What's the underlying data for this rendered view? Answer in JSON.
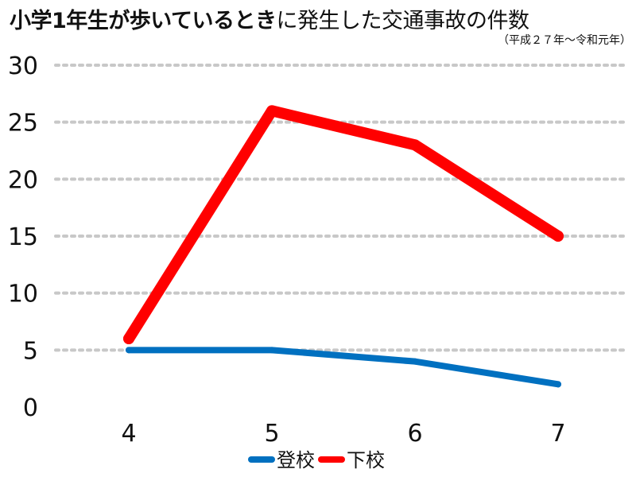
{
  "chart_data": {
    "type": "line",
    "title_bold": "小学1年生が歩いているとき",
    "title_rest": "に発生した交通事故の件数",
    "subtitle": "（平成２７年～令和元年）",
    "xlabel": "",
    "ylabel": "",
    "categories": [
      "4",
      "5",
      "6",
      "7"
    ],
    "ylim": [
      0,
      30
    ],
    "yticks": [
      0,
      5,
      10,
      15,
      20,
      25,
      30
    ],
    "grid": true,
    "legend_position": "bottom",
    "series": [
      {
        "name": "登校",
        "values": [
          5,
          5,
          4,
          2
        ],
        "color": "#0070c0"
      },
      {
        "name": "下校",
        "values": [
          6,
          26,
          23,
          15
        ],
        "color": "#ff0000"
      }
    ]
  }
}
